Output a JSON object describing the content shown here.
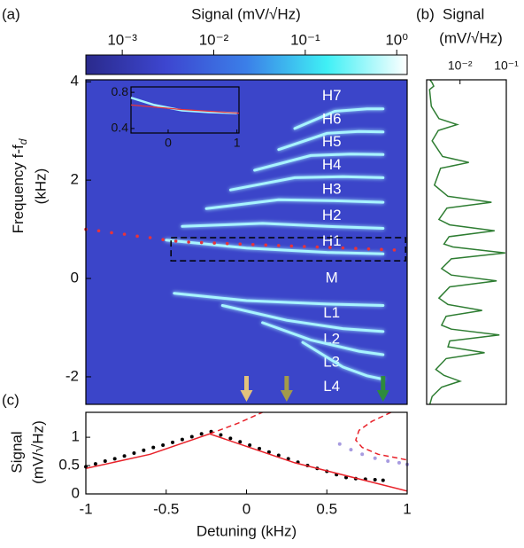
{
  "chart_data": [
    {
      "type": "heatmap",
      "panel_label": "(a)",
      "colorbar": {
        "label": "Signal (mV/√Hz)",
        "scale": "log",
        "lim": [
          0.0004,
          1.3
        ],
        "ticks": [
          {
            "value": 0.001,
            "label": "10⁻³"
          },
          {
            "value": 0.01,
            "label": "10⁻²"
          },
          {
            "value": 0.1,
            "label": "10⁻¹"
          },
          {
            "value": 1,
            "label": "10⁰"
          }
        ],
        "colors": [
          "#2a2a8c",
          "#3d46d0",
          "#3b7fe8",
          "#3ff0f5",
          "#ffffff"
        ]
      },
      "ylabel": "Frequency f-f",
      "ylabel_subscript": "d",
      "ylabel_unit": "(kHz)",
      "xlim": [
        -1,
        1
      ],
      "ylim": [
        -2.56,
        4.04
      ],
      "yticks": [
        -2,
        0,
        2,
        4
      ],
      "background": "#3b45c9",
      "series": [
        {
          "name": "H7",
          "color": "#a8f4ff",
          "x": [
            0.3,
            0.55,
            0.75,
            0.85
          ],
          "y": [
            3.05,
            3.4,
            3.45,
            3.45
          ]
        },
        {
          "name": "H6",
          "color": "#a8f4ff",
          "x": [
            0.2,
            0.5,
            0.7,
            0.85
          ],
          "y": [
            2.62,
            2.95,
            2.99,
            2.98
          ]
        },
        {
          "name": "H5",
          "color": "#a8f4ff",
          "x": [
            0.05,
            0.4,
            0.65,
            0.85
          ],
          "y": [
            2.2,
            2.5,
            2.53,
            2.52
          ]
        },
        {
          "name": "H4",
          "color": "#a8f4ff",
          "x": [
            -0.1,
            0.3,
            0.6,
            0.85
          ],
          "y": [
            1.8,
            2.05,
            2.07,
            2.05
          ]
        },
        {
          "name": "H3",
          "color": "#a8f4ff",
          "x": [
            -0.25,
            0.2,
            0.55,
            0.85
          ],
          "y": [
            1.42,
            1.6,
            1.58,
            1.55
          ]
        },
        {
          "name": "H2",
          "color": "#a8f4ff",
          "x": [
            -0.4,
            0.1,
            0.5,
            0.85
          ],
          "y": [
            1.06,
            1.12,
            1.06,
            1.02
          ]
        },
        {
          "name": "H1",
          "color": "#a8f4ff",
          "x": [
            -0.5,
            0.0,
            0.5,
            0.85
          ],
          "y": [
            0.78,
            0.62,
            0.53,
            0.5
          ]
        },
        {
          "name": "M",
          "color": "#8fa6f0",
          "x": [
            -1,
            1
          ],
          "y": [
            0,
            0
          ]
        },
        {
          "name": "L1",
          "color": "#a8f4ff",
          "x": [
            -0.45,
            0,
            0.5,
            0.85
          ],
          "y": [
            -0.3,
            -0.45,
            -0.52,
            -0.55
          ]
        },
        {
          "name": "L2",
          "color": "#a8f4ff",
          "x": [
            -0.15,
            0.25,
            0.6,
            0.85
          ],
          "y": [
            -0.55,
            -0.85,
            -1.02,
            -1.08
          ]
        },
        {
          "name": "L3",
          "color": "#a8f4ff",
          "x": [
            0.1,
            0.4,
            0.7,
            0.85
          ],
          "y": [
            -0.9,
            -1.25,
            -1.48,
            -1.55
          ]
        },
        {
          "name": "L4",
          "color": "#a8f4ff",
          "x": [
            0.35,
            0.6,
            0.75,
            0.85
          ],
          "y": [
            -1.3,
            -1.8,
            -1.98,
            -2.05
          ]
        }
      ],
      "guide": {
        "color": "#e8333a",
        "x": [
          -1,
          -0.92,
          -0.84,
          -0.76,
          -0.68,
          -0.6,
          -0.52,
          -0.44,
          -0.36,
          -0.28,
          -0.2,
          -0.12,
          -0.04,
          0.04,
          0.12,
          0.2,
          0.28,
          0.36,
          0.44,
          0.52,
          0.6,
          0.68,
          0.76,
          0.84,
          0.92
        ],
        "y": [
          1.0,
          0.97,
          0.93,
          0.9,
          0.86,
          0.83,
          0.79,
          0.76,
          0.74,
          0.73,
          0.72,
          0.71,
          0.7,
          0.69,
          0.68,
          0.67,
          0.66,
          0.65,
          0.64,
          0.63,
          0.62,
          0.61,
          0.6,
          0.59,
          0.58
        ]
      },
      "box": {
        "xlim": [
          -0.47,
          0.99
        ],
        "ylim": [
          0.36,
          0.83
        ]
      },
      "arrows": [
        {
          "x": 0,
          "color": "#e3c27c"
        },
        {
          "x": 0.25,
          "color": "#a39a4a"
        },
        {
          "x": 0.85,
          "color": "#2e8b3c"
        }
      ],
      "inset": {
        "xlim": [
          -0.54,
          1.03
        ],
        "ylim": [
          0.35,
          0.86
        ],
        "xticks": [
          0,
          1
        ],
        "yticks": [
          0.4,
          0.8
        ],
        "series": [
          {
            "color": "#a8f4ff",
            "x": [
              -0.54,
              -0.2,
              0.2,
              0.6,
              1.0
            ],
            "y": [
              0.74,
              0.66,
              0.6,
              0.58,
              0.57
            ]
          },
          {
            "color": "#e8333a",
            "x": [
              -0.54,
              0.2,
              1.03
            ],
            "y": [
              0.66,
              0.61,
              0.57
            ]
          }
        ]
      }
    },
    {
      "type": "spectrum",
      "panel_label": "(b)",
      "title": "Signal",
      "unit": "(mV/√Hz)",
      "xscale": "log",
      "xlim": [
        0.0019,
        0.1
      ],
      "xticks": [
        {
          "value": 0.01,
          "label": "10⁻²"
        },
        {
          "value": 0.1,
          "label": "10⁻¹"
        }
      ],
      "ylim": [
        -2.56,
        4.04
      ],
      "color": "#2e7d32",
      "frequency": [
        4.05,
        3.98,
        3.91,
        3.84,
        3.5,
        3.25,
        3.13,
        3.01,
        2.8,
        2.48,
        2.36,
        2.24,
        1.9,
        1.67,
        1.55,
        1.43,
        1.2,
        1.09,
        0.97,
        0.85,
        0.7,
        0.64,
        0.52,
        0.4,
        0.2,
        0.07,
        -0.05,
        -0.17,
        -0.4,
        -0.53,
        -0.65,
        -0.77,
        -0.95,
        -1.03,
        -1.15,
        -1.27,
        -1.39,
        -1.51,
        -1.63,
        -1.85,
        -1.97,
        -2.09,
        -2.21,
        -2.4,
        -2.58
      ],
      "values": [
        0.0022,
        0.0025,
        0.0027,
        0.0022,
        0.0024,
        0.0035,
        0.0087,
        0.0034,
        0.0025,
        0.0042,
        0.0155,
        0.0038,
        0.0028,
        0.0055,
        0.048,
        0.0052,
        0.0035,
        0.006,
        0.056,
        0.0058,
        0.0045,
        0.007,
        0.095,
        0.0065,
        0.004,
        0.0065,
        0.062,
        0.006,
        0.0035,
        0.0055,
        0.03,
        0.005,
        0.004,
        0.0065,
        0.071,
        0.006,
        0.0055,
        0.034,
        0.005,
        0.003,
        0.0045,
        0.01,
        0.004,
        0.0025,
        0.0022
      ]
    },
    {
      "type": "line",
      "panel_label": "(c)",
      "ylabel": "Signal",
      "ylabel_unit": "(mV/√Hz)",
      "xlabel": "Detuning (kHz)",
      "xlim": [
        -1,
        1
      ],
      "ylim": [
        0,
        1.44
      ],
      "xticks": [
        -1,
        -0.5,
        0,
        0.5,
        1
      ],
      "yticks": [
        0,
        0.5,
        1
      ],
      "series": [
        {
          "style": "dots",
          "color": "#000000",
          "x": [
            -1,
            -0.94,
            -0.88,
            -0.82,
            -0.76,
            -0.7,
            -0.64,
            -0.58,
            -0.52,
            -0.46,
            -0.4,
            -0.34,
            -0.28,
            -0.22,
            -0.16,
            -0.1,
            -0.04,
            0.02,
            0.08,
            0.14,
            0.2,
            0.26,
            0.32,
            0.38,
            0.44,
            0.5,
            0.56,
            0.62,
            0.68,
            0.74,
            0.8,
            0.85
          ],
          "y": [
            0.48,
            0.53,
            0.58,
            0.62,
            0.67,
            0.72,
            0.77,
            0.82,
            0.86,
            0.91,
            0.96,
            1.01,
            1.06,
            1.1,
            1.04,
            0.98,
            0.92,
            0.86,
            0.8,
            0.74,
            0.68,
            0.62,
            0.56,
            0.5,
            0.45,
            0.4,
            0.34,
            0.29,
            0.27,
            0.26,
            0.25,
            0.24
          ]
        },
        {
          "style": "solid",
          "color": "#e8222a",
          "x": [
            -1,
            -0.6,
            -0.23,
            0.3,
            1
          ],
          "y": [
            0.45,
            0.7,
            1.06,
            0.55,
            0.05
          ]
        },
        {
          "style": "dashed",
          "color": "#e8222a",
          "x": [
            -0.23,
            -0.05,
            0.1
          ],
          "y": [
            1.06,
            1.25,
            1.44
          ]
        },
        {
          "style": "dashed",
          "color": "#e8222a",
          "x": [
            0.9,
            0.78,
            0.7,
            0.68,
            0.72,
            0.82,
            1
          ],
          "y": [
            1.44,
            1.28,
            1.12,
            0.95,
            0.82,
            0.7,
            0.6
          ]
        },
        {
          "style": "dots",
          "color": "#a79be0",
          "x": [
            0.58,
            0.65,
            0.72,
            0.8,
            0.88,
            0.95,
            1
          ],
          "y": [
            0.88,
            0.78,
            0.7,
            0.63,
            0.58,
            0.55,
            0.52
          ]
        }
      ]
    }
  ]
}
